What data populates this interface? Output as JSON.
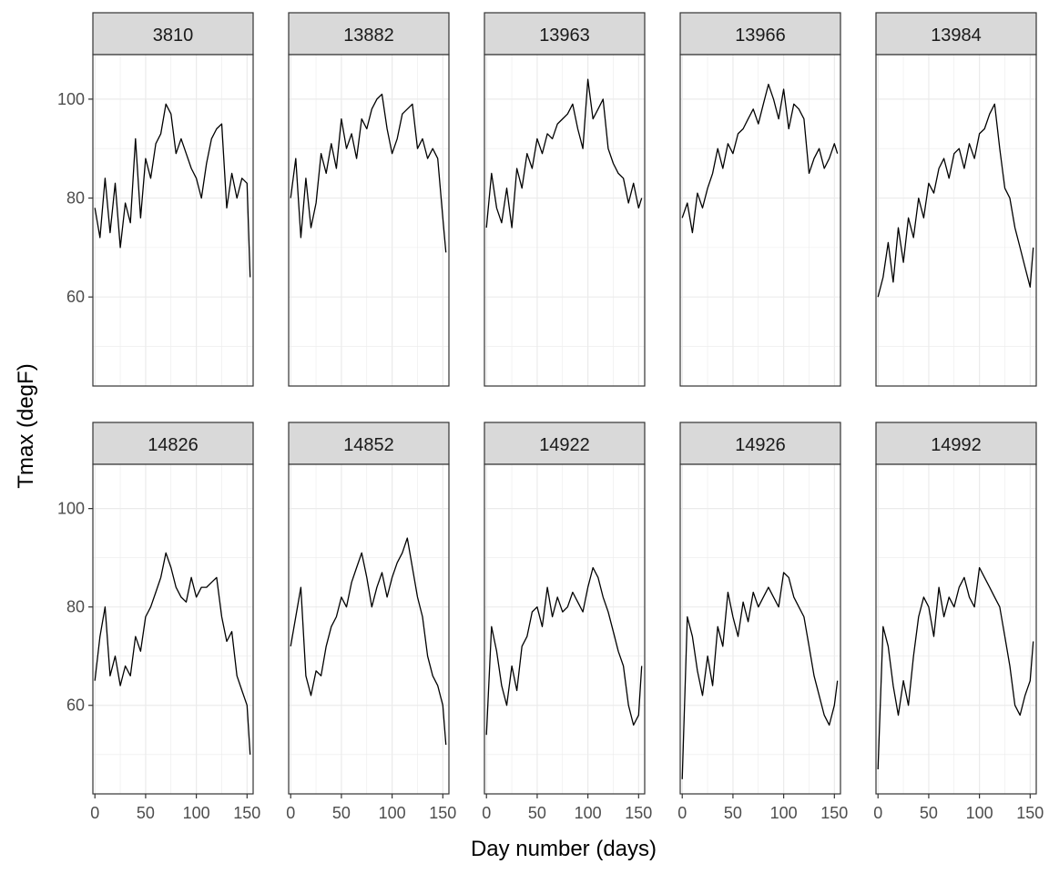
{
  "chart_data": {
    "type": "line",
    "facet_layout": {
      "rows": 2,
      "cols": 5
    },
    "xlabel": "Day number (days)",
    "ylabel": "Tmax (degF)",
    "xlim": [
      -2,
      156
    ],
    "ylim": [
      42,
      109
    ],
    "x_ticks": [
      0,
      50,
      100,
      150
    ],
    "y_ticks": [
      60,
      80,
      100
    ],
    "grid": true,
    "line_color": "#000000",
    "strip_fill": "#d9d9d9",
    "panel_border": "#333333",
    "grid_color": "#ebebeb",
    "series": [
      {
        "name": "3810",
        "x": [
          0,
          5,
          10,
          15,
          20,
          25,
          30,
          35,
          40,
          45,
          50,
          55,
          60,
          65,
          70,
          75,
          80,
          85,
          90,
          95,
          100,
          105,
          110,
          115,
          120,
          125,
          130,
          135,
          140,
          145,
          150,
          153
        ],
        "y": [
          78,
          72,
          84,
          73,
          83,
          70,
          79,
          75,
          92,
          76,
          88,
          84,
          91,
          93,
          99,
          97,
          89,
          92,
          89,
          86,
          84,
          80,
          87,
          92,
          94,
          95,
          78,
          85,
          80,
          84,
          83,
          64
        ]
      },
      {
        "name": "13882",
        "x": [
          0,
          5,
          10,
          15,
          20,
          25,
          30,
          35,
          40,
          45,
          50,
          55,
          60,
          65,
          70,
          75,
          80,
          85,
          90,
          95,
          100,
          105,
          110,
          115,
          120,
          125,
          130,
          135,
          140,
          145,
          150,
          153
        ],
        "y": [
          80,
          88,
          72,
          84,
          74,
          79,
          89,
          85,
          91,
          86,
          96,
          90,
          93,
          88,
          96,
          94,
          98,
          100,
          101,
          94,
          89,
          92,
          97,
          98,
          99,
          90,
          92,
          88,
          90,
          88,
          76,
          69
        ]
      },
      {
        "name": "13963",
        "x": [
          0,
          5,
          10,
          15,
          20,
          25,
          30,
          35,
          40,
          45,
          50,
          55,
          60,
          65,
          70,
          75,
          80,
          85,
          90,
          95,
          100,
          105,
          110,
          115,
          120,
          125,
          130,
          135,
          140,
          145,
          150,
          153
        ],
        "y": [
          74,
          85,
          78,
          75,
          82,
          74,
          86,
          82,
          89,
          86,
          92,
          89,
          93,
          92,
          95,
          96,
          97,
          99,
          94,
          90,
          104,
          96,
          98,
          100,
          90,
          87,
          85,
          84,
          79,
          83,
          78,
          80
        ]
      },
      {
        "name": "13966",
        "x": [
          0,
          5,
          10,
          15,
          20,
          25,
          30,
          35,
          40,
          45,
          50,
          55,
          60,
          65,
          70,
          75,
          80,
          85,
          90,
          95,
          100,
          105,
          110,
          115,
          120,
          125,
          130,
          135,
          140,
          145,
          150,
          153
        ],
        "y": [
          76,
          79,
          73,
          81,
          78,
          82,
          85,
          90,
          86,
          91,
          89,
          93,
          94,
          96,
          98,
          95,
          99,
          103,
          100,
          96,
          102,
          94,
          99,
          98,
          96,
          85,
          88,
          90,
          86,
          88,
          91,
          89
        ]
      },
      {
        "name": "13984",
        "x": [
          0,
          5,
          10,
          15,
          20,
          25,
          30,
          35,
          40,
          45,
          50,
          55,
          60,
          65,
          70,
          75,
          80,
          85,
          90,
          95,
          100,
          105,
          110,
          115,
          120,
          125,
          130,
          135,
          140,
          145,
          150,
          153
        ],
        "y": [
          60,
          64,
          71,
          63,
          74,
          67,
          76,
          72,
          80,
          76,
          83,
          81,
          86,
          88,
          84,
          89,
          90,
          86,
          91,
          88,
          93,
          94,
          97,
          99,
          90,
          82,
          80,
          74,
          70,
          66,
          62,
          70
        ]
      },
      {
        "name": "14826",
        "x": [
          0,
          5,
          10,
          15,
          20,
          25,
          30,
          35,
          40,
          45,
          50,
          55,
          60,
          65,
          70,
          75,
          80,
          85,
          90,
          95,
          100,
          105,
          110,
          115,
          120,
          125,
          130,
          135,
          140,
          145,
          150,
          153
        ],
        "y": [
          65,
          74,
          80,
          66,
          70,
          64,
          68,
          66,
          74,
          71,
          78,
          80,
          83,
          86,
          91,
          88,
          84,
          82,
          81,
          86,
          82,
          84,
          84,
          85,
          86,
          78,
          73,
          75,
          66,
          63,
          60,
          50
        ]
      },
      {
        "name": "14852",
        "x": [
          0,
          5,
          10,
          15,
          20,
          25,
          30,
          35,
          40,
          45,
          50,
          55,
          60,
          65,
          70,
          75,
          80,
          85,
          90,
          95,
          100,
          105,
          110,
          115,
          120,
          125,
          130,
          135,
          140,
          145,
          150,
          153
        ],
        "y": [
          72,
          78,
          84,
          66,
          62,
          67,
          66,
          72,
          76,
          78,
          82,
          80,
          85,
          88,
          91,
          86,
          80,
          84,
          87,
          82,
          86,
          89,
          91,
          94,
          88,
          82,
          78,
          70,
          66,
          64,
          60,
          52
        ]
      },
      {
        "name": "14922",
        "x": [
          0,
          5,
          10,
          15,
          20,
          25,
          30,
          35,
          40,
          45,
          50,
          55,
          60,
          65,
          70,
          75,
          80,
          85,
          90,
          95,
          100,
          105,
          110,
          115,
          120,
          125,
          130,
          135,
          140,
          145,
          150,
          153
        ],
        "y": [
          54,
          76,
          71,
          64,
          60,
          68,
          63,
          72,
          74,
          79,
          80,
          76,
          84,
          78,
          82,
          79,
          80,
          83,
          81,
          79,
          84,
          88,
          86,
          82,
          79,
          75,
          71,
          68,
          60,
          56,
          58,
          68
        ]
      },
      {
        "name": "14926",
        "x": [
          0,
          5,
          10,
          15,
          20,
          25,
          30,
          35,
          40,
          45,
          50,
          55,
          60,
          65,
          70,
          75,
          80,
          85,
          90,
          95,
          100,
          105,
          110,
          115,
          120,
          125,
          130,
          135,
          140,
          145,
          150,
          153
        ],
        "y": [
          45,
          78,
          74,
          67,
          62,
          70,
          64,
          76,
          72,
          83,
          78,
          74,
          81,
          77,
          83,
          80,
          82,
          84,
          82,
          80,
          87,
          86,
          82,
          80,
          78,
          72,
          66,
          62,
          58,
          56,
          60,
          65
        ]
      },
      {
        "name": "14992",
        "x": [
          0,
          5,
          10,
          15,
          20,
          25,
          30,
          35,
          40,
          45,
          50,
          55,
          60,
          65,
          70,
          75,
          80,
          85,
          90,
          95,
          100,
          105,
          110,
          115,
          120,
          125,
          130,
          135,
          140,
          145,
          150,
          153
        ],
        "y": [
          47,
          76,
          72,
          64,
          58,
          65,
          60,
          70,
          78,
          82,
          80,
          74,
          84,
          78,
          82,
          80,
          84,
          86,
          82,
          80,
          88,
          86,
          84,
          82,
          80,
          74,
          68,
          60,
          58,
          62,
          65,
          73
        ]
      }
    ]
  }
}
